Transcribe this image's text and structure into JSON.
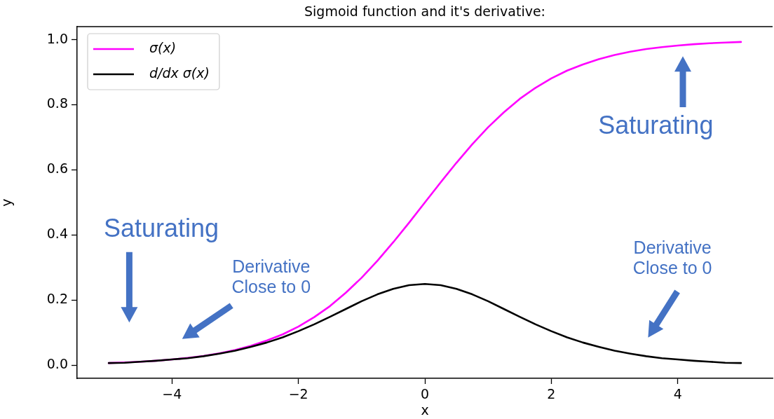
{
  "chart_data": {
    "type": "line",
    "title": "Sigmoid function and it's derivative:",
    "xlabel": "x",
    "ylabel": "y",
    "x": [
      -5,
      -4.75,
      -4.5,
      -4.25,
      -4,
      -3.75,
      -3.5,
      -3.25,
      -3,
      -2.75,
      -2.5,
      -2.25,
      -2,
      -1.75,
      -1.5,
      -1.25,
      -1,
      -0.75,
      -0.5,
      -0.25,
      0,
      0.25,
      0.5,
      0.75,
      1,
      1.25,
      1.5,
      1.75,
      2,
      2.25,
      2.5,
      2.75,
      3,
      3.25,
      3.5,
      3.75,
      4,
      4.25,
      4.5,
      4.75,
      5
    ],
    "series": [
      {
        "name": "σ(x)",
        "color": "#ff00ff",
        "values": [
          0.007,
          0.009,
          0.011,
          0.014,
          0.018,
          0.023,
          0.029,
          0.037,
          0.047,
          0.06,
          0.076,
          0.095,
          0.119,
          0.148,
          0.182,
          0.223,
          0.269,
          0.321,
          0.378,
          0.438,
          0.5,
          0.562,
          0.622,
          0.679,
          0.731,
          0.777,
          0.818,
          0.852,
          0.881,
          0.905,
          0.924,
          0.94,
          0.953,
          0.963,
          0.971,
          0.977,
          0.982,
          0.986,
          0.989,
          0.991,
          0.993
        ]
      },
      {
        "name": "d/dx σ(x)",
        "color": "#000000",
        "values": [
          0.007,
          0.008,
          0.011,
          0.014,
          0.018,
          0.022,
          0.028,
          0.036,
          0.045,
          0.057,
          0.07,
          0.086,
          0.105,
          0.126,
          0.149,
          0.173,
          0.197,
          0.218,
          0.235,
          0.246,
          0.25,
          0.246,
          0.235,
          0.218,
          0.197,
          0.173,
          0.149,
          0.126,
          0.105,
          0.086,
          0.07,
          0.057,
          0.045,
          0.036,
          0.028,
          0.022,
          0.018,
          0.014,
          0.011,
          0.008,
          0.007
        ]
      }
    ],
    "xlim": [
      -5.5,
      5.5
    ],
    "xticks": [
      {
        "value": -4,
        "label": "−4"
      },
      {
        "value": -2,
        "label": "−2"
      },
      0,
      2,
      4
    ],
    "ylim": [
      -0.04,
      1.04
    ],
    "yticks": [
      {
        "value": 0,
        "label": "0.0"
      },
      0.2,
      0.4,
      0.6,
      0.8,
      {
        "value": 1,
        "label": "1.0"
      }
    ],
    "legend": "top left",
    "line_style": "solid",
    "annotations": [
      "Saturating",
      "Saturating",
      "Derivative\nClose to 0",
      "Derivative\nClose to 0"
    ]
  }
}
